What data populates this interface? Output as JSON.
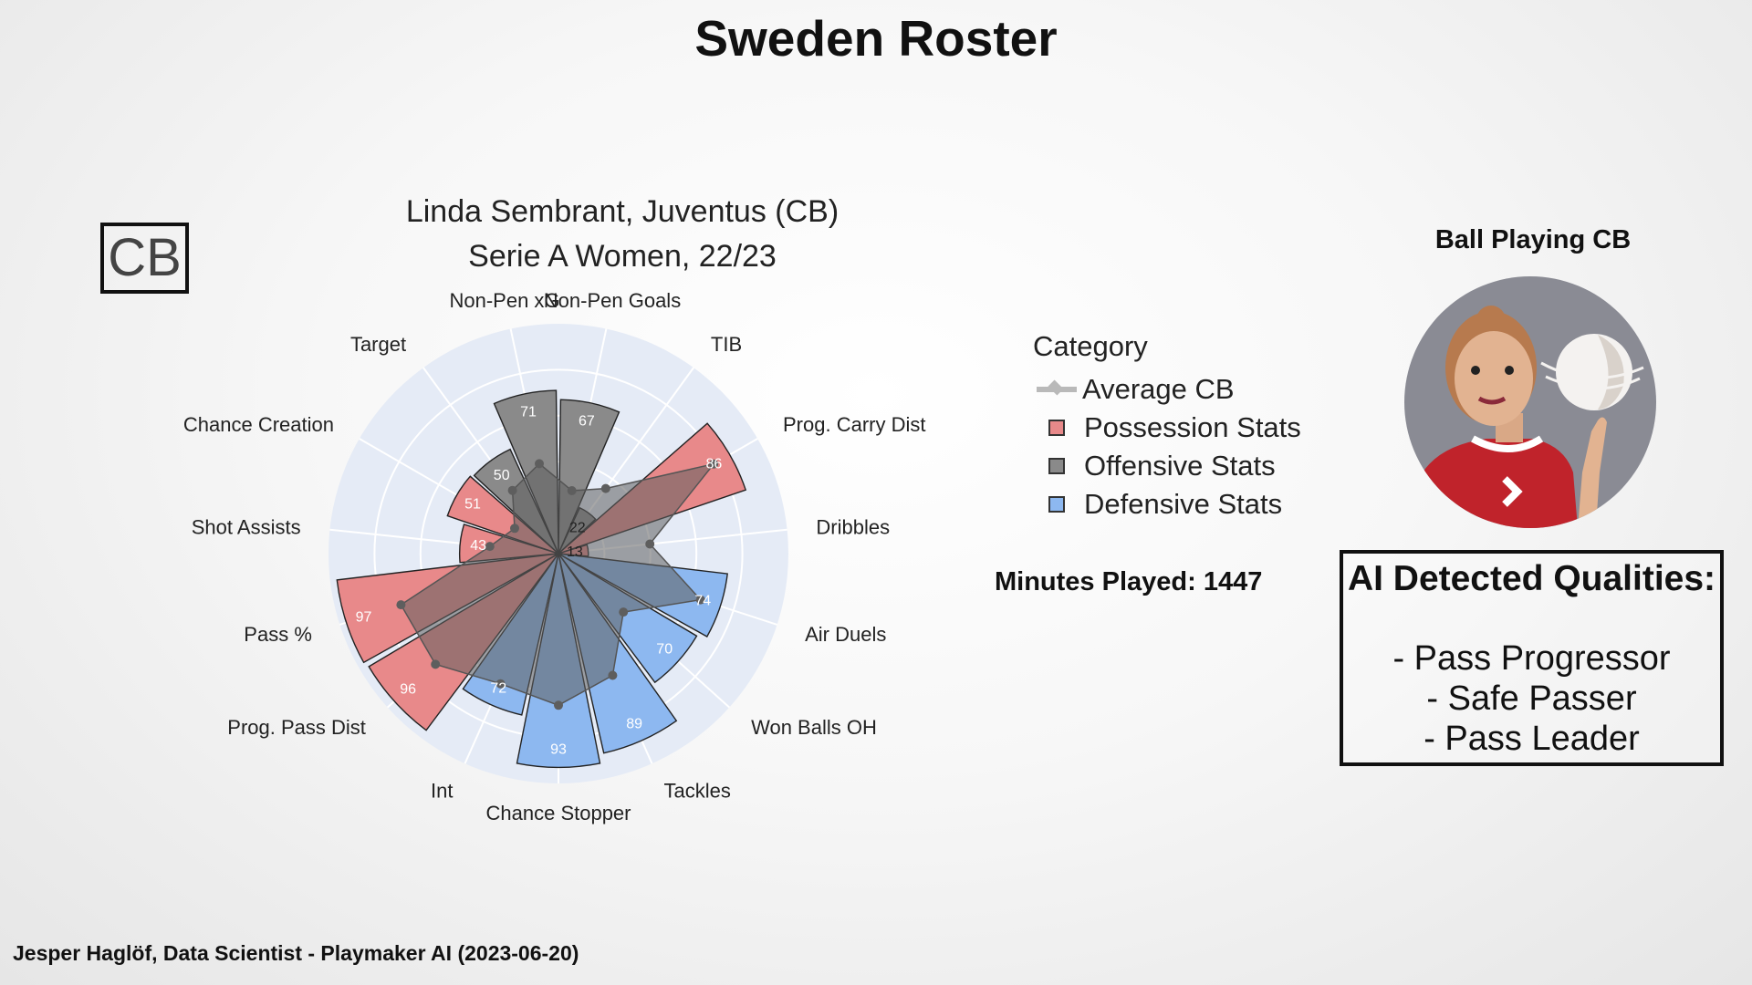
{
  "header": {
    "title": "Sweden Roster"
  },
  "position_badge": "CB",
  "minutes_played": "Minutes Played: 1447",
  "archetype": {
    "label": "Ball Playing CB"
  },
  "qualities": {
    "title": "AI Detected Qualities:",
    "items": [
      "- Pass Progressor",
      "- Safe Passer",
      "- Pass Leader"
    ]
  },
  "footer": "Jesper Haglöf, Data Scientist - Playmaker AI (2023-06-20)",
  "legend": {
    "title": "Category",
    "items": [
      {
        "label": "Average CB",
        "color": "#b9b9b9"
      },
      {
        "label": "Possession Stats",
        "color": "#e8898a"
      },
      {
        "label": "Offensive Stats",
        "color": "#8a8a8a"
      },
      {
        "label": "Defensive Stats",
        "color": "#8db8f0"
      }
    ]
  },
  "chart_data": {
    "type": "polar-bar",
    "title": "Linda Sembrant, Juventus (CB)",
    "subtitle": "Serie A Women, 22/23",
    "rmax": 100,
    "colors": {
      "Possession Stats": "#e8898a",
      "Offensive Stats": "#8a8a8a",
      "Defensive Stats": "#8db8f0",
      "Average CB": "#5e5e5e",
      "polar_bg": "#e5ebf6"
    },
    "categories": [
      {
        "label": "Non-Pen Goals",
        "value": 67,
        "group": "Offensive Stats",
        "avg": 28
      },
      {
        "label": "TIB",
        "value": 22,
        "group": "Offensive Stats",
        "avg": 35
      },
      {
        "label": "Prog. Carry Dist",
        "value": 86,
        "group": "Possession Stats",
        "avg": 78
      },
      {
        "label": "Dribbles",
        "value": 13,
        "group": "Possession Stats",
        "avg": 40
      },
      {
        "label": "Air Duels",
        "value": 74,
        "group": "Defensive Stats",
        "avg": 65
      },
      {
        "label": "Won Balls OH",
        "value": 70,
        "group": "Defensive Stats",
        "avg": 38
      },
      {
        "label": "Tackles",
        "value": 89,
        "group": "Defensive Stats",
        "avg": 58
      },
      {
        "label": "Chance Stopper",
        "value": 93,
        "group": "Defensive Stats",
        "avg": 66
      },
      {
        "label": "Int",
        "value": 72,
        "group": "Defensive Stats",
        "avg": 62
      },
      {
        "label": "Prog. Pass Dist",
        "value": 96,
        "group": "Possession Stats",
        "avg": 72
      },
      {
        "label": "Pass %",
        "value": 97,
        "group": "Possession Stats",
        "avg": 72
      },
      {
        "label": "Shot Assists",
        "value": 43,
        "group": "Possession Stats",
        "avg": 30
      },
      {
        "label": "Chance Creation",
        "value": 51,
        "group": "Possession Stats",
        "avg": 22
      },
      {
        "label": "Target",
        "value": 50,
        "group": "Offensive Stats",
        "avg": 34
      },
      {
        "label": "Non-Pen xG",
        "value": 71,
        "group": "Offensive Stats",
        "avg": 40
      }
    ]
  }
}
